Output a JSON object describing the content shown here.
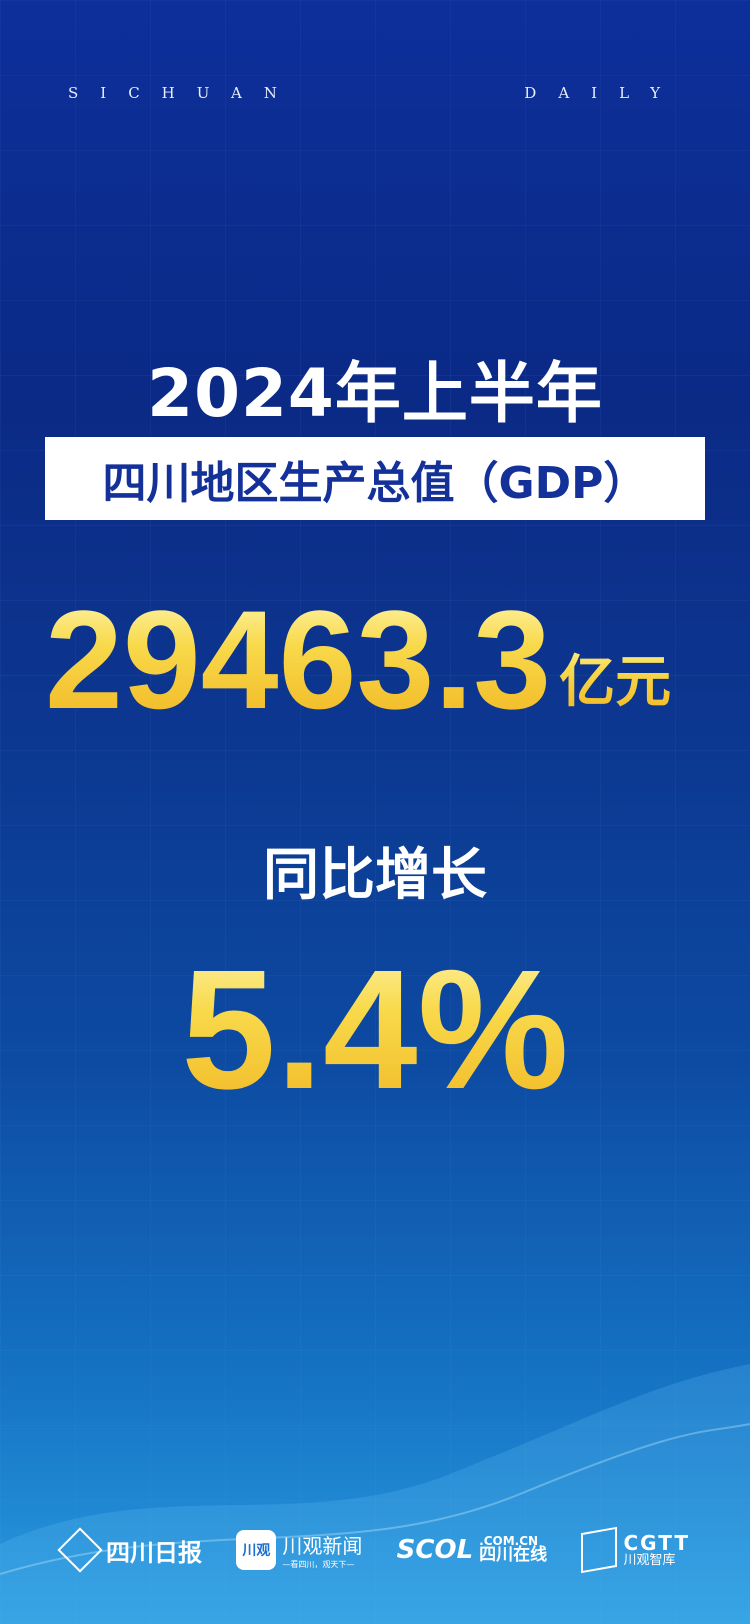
{
  "masthead": {
    "left": "SICHUAN",
    "right": "DAILY"
  },
  "headline": {
    "period": "2024年上半年",
    "label": "四川地区生产总值（GDP）"
  },
  "gdp": {
    "value": "29463.3",
    "unit": "亿元"
  },
  "growth": {
    "label": "同比增长",
    "value": "5.4%"
  },
  "colors": {
    "background": "#0c2f9a",
    "gold": "#f5c93a",
    "label_text": "#14319a"
  },
  "logos": {
    "sichuan_daily": "四川日报",
    "chuanguan_icon": "川观",
    "chuanguan_name": "川观新闻",
    "chuanguan_slogan": "—看四川，观天下—",
    "scol_mark": "SCOL",
    "scol_domain": ".COM.CN",
    "scol_name": "四川在线",
    "cgtt_mark": "CGTT",
    "cgtt_name": "川观智库"
  }
}
